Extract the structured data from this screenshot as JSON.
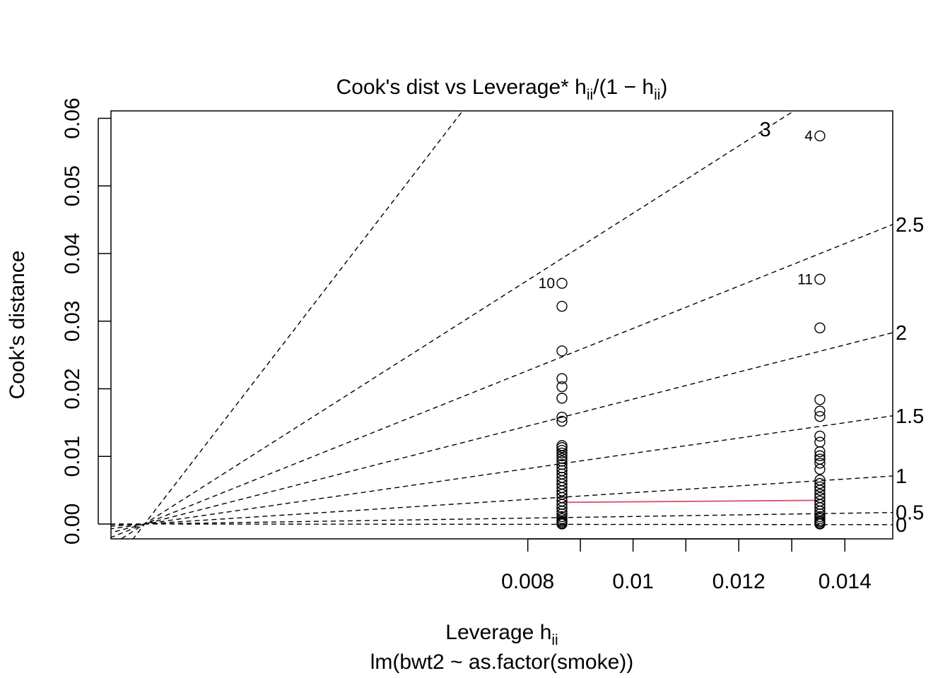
{
  "chart_data": {
    "type": "scatter",
    "title": {
      "main": "Cook's dist vs Leverage* h",
      "sub1": "ii",
      "mid": "/(1 − h",
      "sub2": "ii",
      "end": ")"
    },
    "xlabel": {
      "main": "Leverage  h",
      "sub": "ii"
    },
    "ylabel": "Cook's distance",
    "caption": "lm(bwt2 ~ as.factor(smoke))",
    "x_domain": [
      0.0,
      0.0149
    ],
    "x_origin_leverage": 0.00065,
    "ylim": [
      -0.0022,
      0.0611
    ],
    "x_tick_values": [
      0.008,
      0.009,
      0.01,
      0.011,
      0.012,
      0.013,
      0.014
    ],
    "x_tick_labels": [
      {
        "value": 0.008,
        "label": "0.008"
      },
      {
        "value": 0.01,
        "label": "0.01"
      },
      {
        "value": 0.012,
        "label": "0.012"
      },
      {
        "value": 0.014,
        "label": "0.014"
      }
    ],
    "y_ticks": [
      {
        "value": 0.0,
        "label": "0.00"
      },
      {
        "value": 0.01,
        "label": "0.01"
      },
      {
        "value": 0.02,
        "label": "0.02"
      },
      {
        "value": 0.03,
        "label": "0.03"
      },
      {
        "value": 0.04,
        "label": "0.04"
      },
      {
        "value": 0.05,
        "label": "0.05"
      },
      {
        "value": 0.06,
        "label": "0.06"
      }
    ],
    "contour_slopes": [
      0,
      0.5,
      1,
      1.5,
      2,
      2.5,
      3
    ],
    "contour_labels": [
      {
        "label": "0",
        "y": -0.0001
      },
      {
        "label": "0.5",
        "y": 0.0017
      },
      {
        "label": "1",
        "y": 0.0071
      },
      {
        "label": "1.5",
        "y": 0.016
      },
      {
        "label": "2",
        "y": 0.0283
      },
      {
        "label": "2.5",
        "y": 0.0443
      },
      {
        "label": "3",
        "y": 0.0584,
        "x": 0.0125
      }
    ],
    "smoother": {
      "color": "#df536b",
      "x": [
        0.00865,
        0.01353
      ],
      "y": [
        0.0032,
        0.0035
      ]
    },
    "labeled_points": [
      {
        "label": "4",
        "x": 0.01353,
        "y": 0.0574
      },
      {
        "label": "10",
        "x": 0.00865,
        "y": 0.0356
      },
      {
        "label": "11",
        "x": 0.01353,
        "y": 0.0362
      }
    ],
    "series": [
      {
        "x": 0.00865,
        "y": [
          0.0356,
          0.0322,
          0.0256,
          0.0215,
          0.0203,
          0.0186,
          0.0158,
          0.0152,
          0.0116,
          0.0113,
          0.0109,
          0.0105,
          0.0101,
          0.0097,
          0.0093,
          0.0088,
          0.0083,
          0.0079,
          0.0074,
          0.0069,
          0.0064,
          0.0059,
          0.0054,
          0.0049,
          0.0044,
          0.0039,
          0.0034,
          0.0029,
          0.0024,
          0.0019,
          0.0015,
          0.0011,
          0.0008,
          0.0005,
          0.0003,
          0.0001,
          0.0
        ]
      },
      {
        "x": 0.01353,
        "y": [
          0.0574,
          0.0362,
          0.029,
          0.0184,
          0.0167,
          0.0159,
          0.013,
          0.0121,
          0.0107,
          0.0101,
          0.0096,
          0.009,
          0.0081,
          0.0065,
          0.006,
          0.0055,
          0.005,
          0.0044,
          0.0039,
          0.0034,
          0.0029,
          0.0024,
          0.0019,
          0.0015,
          0.0011,
          0.0008,
          0.0005,
          0.0003,
          0.0001,
          0.0
        ]
      }
    ]
  }
}
